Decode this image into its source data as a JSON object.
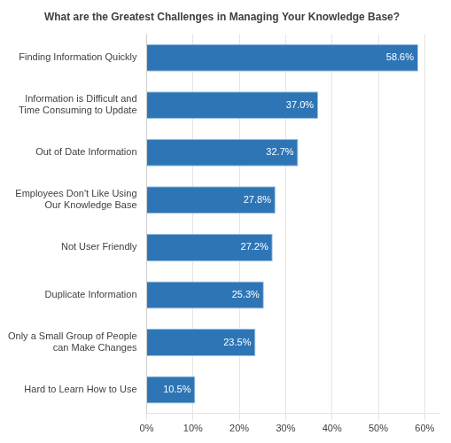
{
  "chart_data": {
    "type": "bar",
    "orientation": "horizontal",
    "title": "What are the Greatest Challenges in Managing Your Knowledge Base?",
    "categories": [
      "Hard to Learn How to Use",
      "Only a Small Group of People\ncan Make Changes",
      "Duplicate Information",
      "Not User Friendly",
      "Employees Don't Like Using\nOur Knowledge Base",
      "Out of Date Information",
      "Information is Difficult and\nTime Consuming to Update",
      "Finding Information Quickly"
    ],
    "values": [
      10.5,
      23.5,
      25.3,
      27.2,
      27.8,
      32.7,
      37.0,
      58.6
    ],
    "value_labels": [
      "10.5%",
      "23.5%",
      "25.3%",
      "27.2%",
      "27.8%",
      "32.7%",
      "37.0%",
      "58.6%"
    ],
    "data_labels": true,
    "color": "#2E75B6",
    "xlim": [
      0,
      63
    ],
    "xticks": [
      {
        "value": 0,
        "label": "0%"
      },
      {
        "value": 10,
        "label": "10%"
      },
      {
        "value": 20,
        "label": "20%"
      },
      {
        "value": 30,
        "label": "30%"
      },
      {
        "value": 40,
        "label": "40%"
      },
      {
        "value": 50,
        "label": "50%"
      },
      {
        "value": 60,
        "label": "60%"
      }
    ],
    "grid": true
  }
}
